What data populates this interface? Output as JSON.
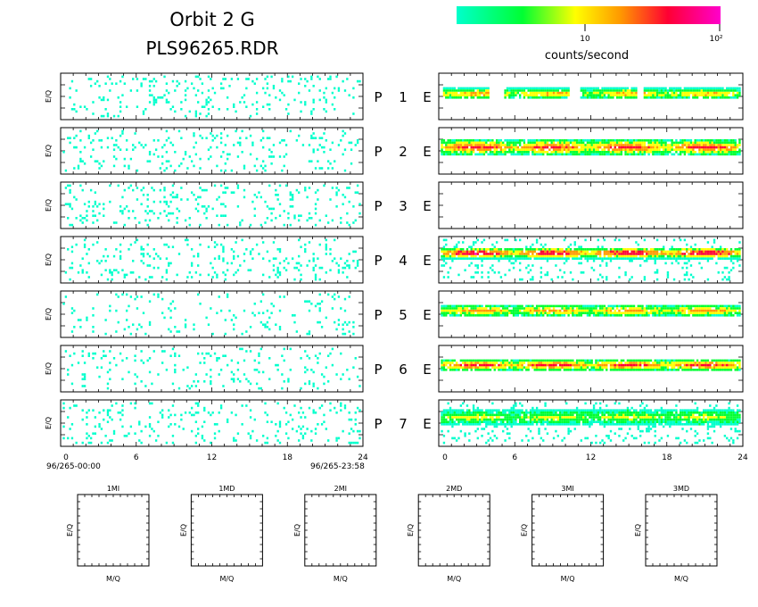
{
  "header": {
    "title": "Orbit 2 G",
    "filename": "PLS96265.RDR"
  },
  "colorbar": {
    "stops": [
      "#00ffcc",
      "#00ff33",
      "#ffff00",
      "#ff9900",
      "#ff0033",
      "#ff00cc"
    ],
    "tick_labels": [
      "10",
      "10²"
    ],
    "label": "counts/second"
  },
  "channels": [
    {
      "left": "P",
      "num": "1",
      "right": "E"
    },
    {
      "left": "P",
      "num": "2",
      "right": "E"
    },
    {
      "left": "P",
      "num": "3",
      "right": "E"
    },
    {
      "left": "P",
      "num": "4",
      "right": "E"
    },
    {
      "left": "P",
      "num": "5",
      "right": "E"
    },
    {
      "left": "P",
      "num": "6",
      "right": "E"
    },
    {
      "left": "P",
      "num": "7",
      "right": "E"
    }
  ],
  "axes": {
    "ylabel": "E/Q",
    "x_ticks": [
      "0",
      "6",
      "12",
      "18",
      "24"
    ],
    "start_time": "96/265-00:00",
    "end_time": "96/265-23:58"
  },
  "mass_panels": {
    "titles": [
      "1MI",
      "1MD",
      "2MI",
      "2MD",
      "3MI",
      "3MD"
    ],
    "xlabel": "M/Q",
    "ylabel": "E/Q"
  },
  "chart_data": {
    "type": "heatmap",
    "x_range": [
      0,
      24
    ],
    "colorscale": {
      "label": "counts/second",
      "log": true
    },
    "left_panels": {
      "description_colors": "sparse cyan (lowest count) points scattered across all hours and E/Q bins",
      "density": [
        0.09,
        0.08,
        0.1,
        0.09,
        0.06,
        0.07,
        0.1
      ]
    },
    "right_panels": [
      {
        "channel": 1,
        "band_center": 0.42,
        "band_halfwidth": 0.12,
        "peak_level": 3,
        "gaps": [
          [
            0,
            0.3
          ],
          [
            4.0,
            5.2
          ],
          [
            10.4,
            11.2
          ],
          [
            15.6,
            16.2
          ]
        ]
      },
      {
        "channel": 2,
        "band_center": 0.4,
        "band_halfwidth": 0.18,
        "peak_level": 4,
        "gaps": []
      },
      {
        "channel": 3,
        "band_center": 0.0,
        "band_halfwidth": 0.0,
        "peak_level": 0,
        "gaps": [
          [
            0,
            24
          ]
        ]
      },
      {
        "channel": 4,
        "band_center": 0.33,
        "band_halfwidth": 0.12,
        "peak_level": 5,
        "gaps": []
      },
      {
        "channel": 5,
        "band_center": 0.4,
        "band_halfwidth": 0.14,
        "peak_level": 3,
        "gaps": []
      },
      {
        "channel": 6,
        "band_center": 0.4,
        "band_halfwidth": 0.14,
        "peak_level": 4,
        "gaps": []
      },
      {
        "channel": 7,
        "band_center": 0.35,
        "band_halfwidth": 0.16,
        "peak_level": 2,
        "gaps": []
      }
    ]
  }
}
